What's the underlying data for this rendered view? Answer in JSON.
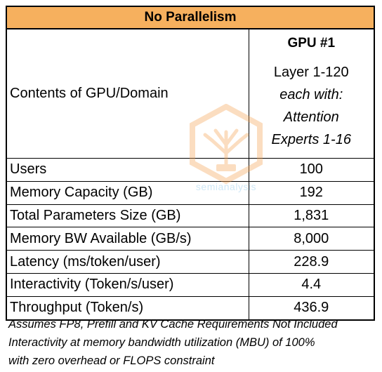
{
  "table": {
    "title": "No Parallelism",
    "header": {
      "label": "Contents of GPU/Domain",
      "gpu_title": "GPU #1",
      "gpu_lines": [
        {
          "text": "Layer 1-120",
          "italic": false
        },
        {
          "text": "each with:",
          "italic": true
        },
        {
          "text": "Attention",
          "italic": true
        },
        {
          "text": "Experts 1-16",
          "italic": true
        }
      ]
    },
    "rows": [
      {
        "label": "Users",
        "value": "100"
      },
      {
        "label": "Memory Capacity (GB)",
        "value": "192"
      },
      {
        "label": "Total Parameters Size  (GB)",
        "value": "1,831"
      },
      {
        "label": "Memory BW Available (GB/s)",
        "value": "8,000"
      },
      {
        "label": "Latency (ms/token/user)",
        "value": "228.9"
      },
      {
        "label": "Interactivity (Token/s/user)",
        "value": "4.4"
      },
      {
        "label": "Throughput (Token/s)",
        "value": "436.9"
      }
    ]
  },
  "footnotes": [
    "Assumes FP8, Prefill and KV Cache Requirements Not Included",
    "Interactivity at memory bandwidth utilization (MBU) of 100%",
    "with zero overhead or FLOPS constraint"
  ],
  "watermark": {
    "text": "semianalysis",
    "color_orange": "#f6a04d",
    "color_blue": "#bfe0f3"
  }
}
